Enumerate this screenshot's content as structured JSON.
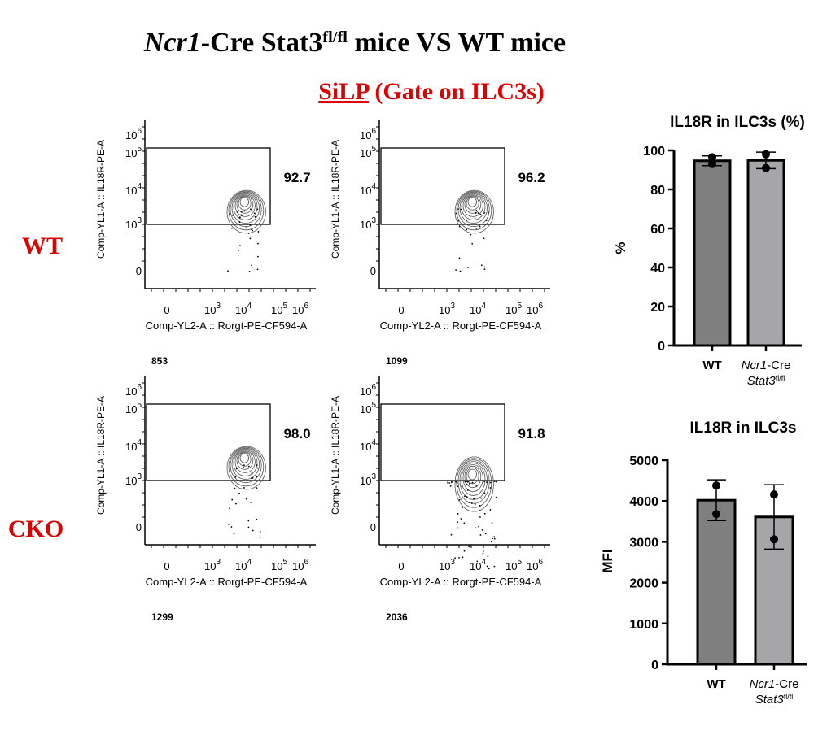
{
  "title": [
    {
      "t": "Ncr1",
      "i": true
    },
    {
      "t": "-Cre Stat3"
    },
    {
      "t": "fl/fl",
      "sup": true
    },
    {
      "t": " mice VS WT mice"
    }
  ],
  "subtitle": [
    {
      "t": "SiLP",
      "u": true
    },
    {
      "t": " (Gate on ILC3s)"
    }
  ],
  "row_labels": [
    "WT",
    "CKO"
  ],
  "flow_axes": {
    "ylabel": "Comp-YL1-A :: IL18R-PE-A",
    "xlabel": "Comp-YL2-A :: Rorgt-PE-CF594-A",
    "yticks": [
      {
        "b": "10",
        "e": "6"
      },
      {
        "b": "10",
        "e": "5"
      },
      {
        "b": "10",
        "e": "4"
      },
      {
        "b": "10",
        "e": "3"
      },
      {
        "b": "0"
      }
    ],
    "xticks": [
      {
        "b": "0"
      },
      {
        "b": "10",
        "e": "3"
      },
      {
        "b": "10",
        "e": "4"
      },
      {
        "b": "10",
        "e": "5"
      },
      {
        "b": "10",
        "e": "6"
      }
    ]
  },
  "flow_plots": [
    {
      "gate": "92.7",
      "count": "853"
    },
    {
      "gate": "96.2",
      "count": "1099"
    },
    {
      "gate": "98.0",
      "count": "1299"
    },
    {
      "gate": "91.8",
      "count": "2036"
    }
  ],
  "chart_data": [
    {
      "type": "bar",
      "title": "IL18R in ILC3s (%)",
      "ylabel": "%",
      "categories": [
        [
          {
            "t": "WT"
          }
        ],
        [
          {
            "t": "Ncr1",
            "i": true
          },
          {
            "t": "-Cre"
          },
          {
            "t": "Stat3",
            "i": true,
            "br": true
          },
          {
            "t": "fl/fl",
            "sup": true
          }
        ]
      ],
      "values": [
        94.7,
        94.9
      ],
      "errors": [
        2.5,
        4.2
      ],
      "points": [
        [
          96.5,
          93
        ],
        [
          98,
          91
        ]
      ],
      "colors": [
        "#7f7f7f",
        "#a6a6a8"
      ],
      "ylim": [
        0,
        100
      ],
      "yticks": [
        0,
        20,
        40,
        60,
        80,
        100
      ]
    },
    {
      "type": "bar",
      "title": "IL18R in ILC3s",
      "ylabel": "MFI",
      "categories": [
        [
          {
            "t": "WT"
          }
        ],
        [
          {
            "t": "Ncr1",
            "i": true
          },
          {
            "t": "-Cre"
          },
          {
            "t": "Stat3",
            "i": true,
            "br": true
          },
          {
            "t": "fl/fl",
            "sup": true
          }
        ]
      ],
      "values": [
        4020,
        3610
      ],
      "errors": [
        500,
        790
      ],
      "points": [
        [
          4380,
          3680
        ],
        [
          4160,
          3060
        ]
      ],
      "colors": [
        "#7f7f7f",
        "#a6a6a8"
      ],
      "ylim": [
        0,
        5000
      ],
      "yticks": [
        0,
        1000,
        2000,
        3000,
        4000,
        5000
      ]
    }
  ]
}
